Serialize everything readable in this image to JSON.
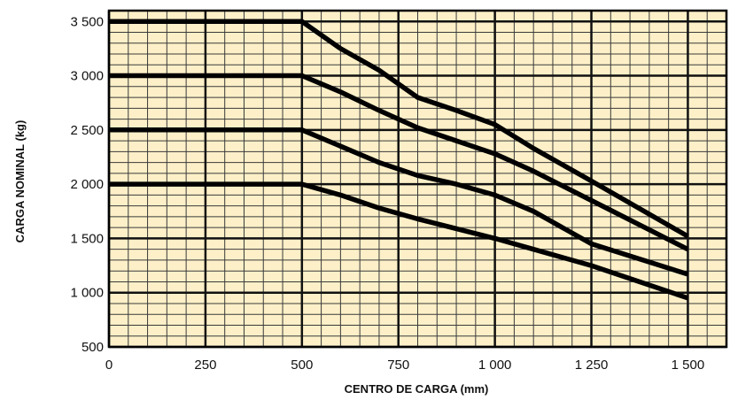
{
  "chart_data": {
    "type": "line",
    "title": "",
    "xlabel": "CENTRO DE CARGA (mm)",
    "ylabel": "CARGA NOMINAL (kg)",
    "xlim": [
      0,
      1600
    ],
    "ylim": [
      500,
      3600
    ],
    "x_ticks": [
      0,
      250,
      500,
      750,
      1000,
      1250,
      1500
    ],
    "x_tick_labels": [
      "0",
      "250",
      "500",
      "750",
      "1 000",
      "1 250",
      "1 500"
    ],
    "y_ticks": [
      500,
      1000,
      1500,
      2000,
      2500,
      3000,
      3500
    ],
    "y_tick_labels": [
      "500",
      "1 000",
      "1 500",
      "2 000",
      "2 500",
      "3 000",
      "3 500"
    ],
    "minor_grid_x_step": 50,
    "minor_grid_y_step": 100,
    "grid": true,
    "legend": "none",
    "colors": {
      "background": "#fdf0c8",
      "grid_minor": "#3a3a3a",
      "grid_major": "#111111",
      "line": "#000000"
    },
    "series": [
      {
        "x": [
          0,
          500,
          600,
          700,
          800,
          900,
          1000,
          1100,
          1250,
          1500
        ],
        "values": [
          3500,
          3500,
          3250,
          3050,
          2800,
          2680,
          2550,
          2330,
          2030,
          1520
        ]
      },
      {
        "x": [
          0,
          500,
          600,
          700,
          800,
          900,
          1000,
          1100,
          1250,
          1500
        ],
        "values": [
          3000,
          3000,
          2850,
          2680,
          2520,
          2400,
          2280,
          2120,
          1850,
          1400
        ]
      },
      {
        "x": [
          0,
          500,
          600,
          700,
          800,
          900,
          1000,
          1100,
          1250,
          1500
        ],
        "values": [
          2500,
          2500,
          2350,
          2200,
          2080,
          2000,
          1900,
          1750,
          1450,
          1170
        ]
      },
      {
        "x": [
          0,
          500,
          600,
          700,
          800,
          900,
          1000,
          1100,
          1250,
          1500
        ],
        "values": [
          2000,
          2000,
          1900,
          1780,
          1680,
          1590,
          1500,
          1400,
          1250,
          950
        ]
      }
    ]
  }
}
